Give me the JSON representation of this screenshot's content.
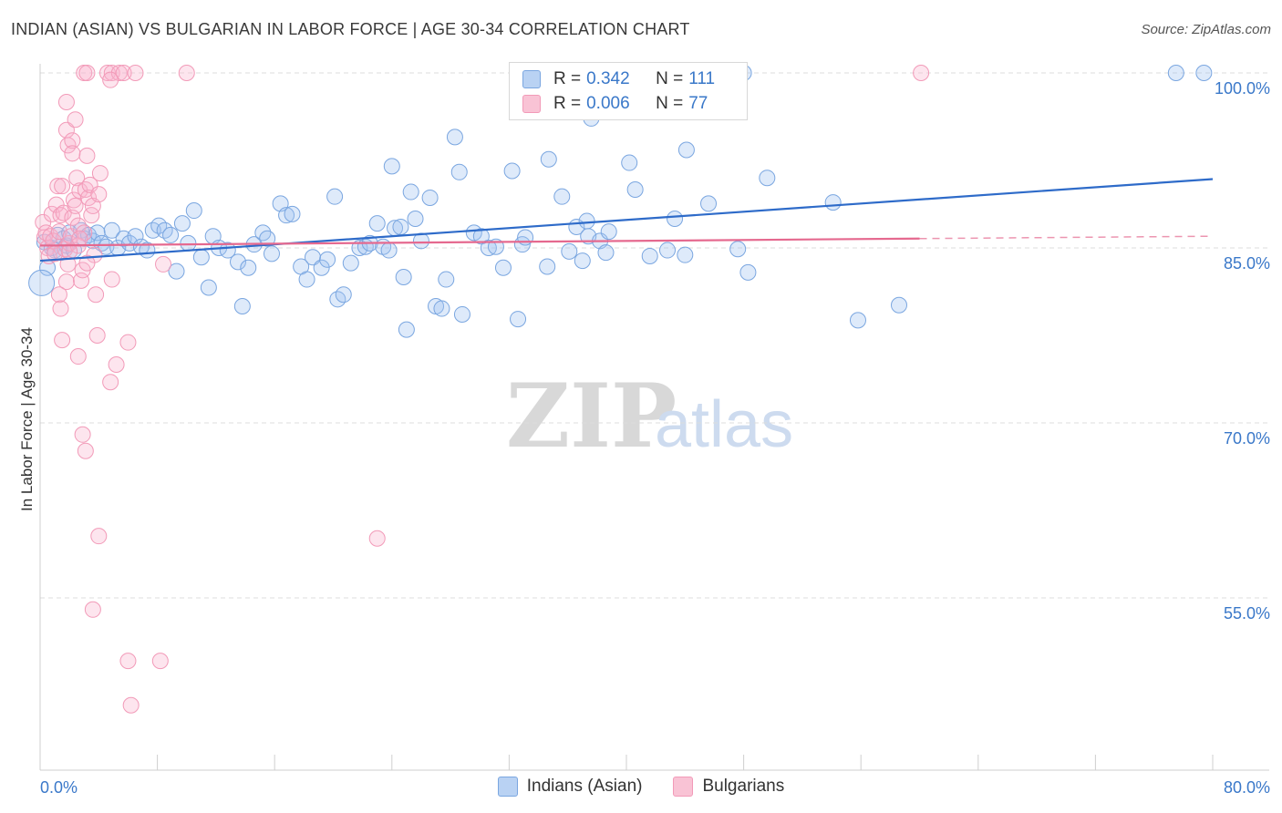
{
  "title": "INDIAN (ASIAN) VS BULGARIAN IN LABOR FORCE | AGE 30-34 CORRELATION CHART",
  "source": "Source: ZipAtlas.com",
  "watermark": {
    "zip": "ZIP",
    "atlas": "atlas"
  },
  "legend": {
    "r_label": "R =",
    "n_label": "N =",
    "series1": {
      "r": "0.342",
      "n": "111"
    },
    "series2": {
      "r": "0.006",
      "n": "77"
    }
  },
  "chart_data": {
    "type": "scatter",
    "ylabel": "In Labor Force | Age 30-34",
    "xlim": [
      0,
      80
    ],
    "ylim": [
      43,
      101
    ],
    "x_tick_labels": [
      "0.0%",
      "80.0%"
    ],
    "y_ticks": [
      {
        "value": 100,
        "label": "100.0%"
      },
      {
        "value": 85,
        "label": "85.0%"
      },
      {
        "value": 70,
        "label": "70.0%"
      },
      {
        "value": 55,
        "label": "55.0%"
      }
    ],
    "grid": "horizontal dashed",
    "legend_position": "bottom",
    "series": [
      {
        "name": "Indians (Asian)",
        "color": "#7aa6e0",
        "line_color": "#2e6bc9",
        "trend": {
          "x1": 0,
          "y1": 83.9,
          "x2": 80,
          "y2": 90.9
        },
        "points": [
          [
            0.3,
            85.5
          ],
          [
            0.5,
            83.3
          ],
          [
            0.8,
            85.0
          ],
          [
            1.0,
            84.8
          ],
          [
            1.2,
            86.1
          ],
          [
            1.4,
            84.6
          ],
          [
            1.6,
            85.8
          ],
          [
            1.8,
            85.2
          ],
          [
            2.0,
            86.3
          ],
          [
            2.3,
            84.8
          ],
          [
            2.8,
            86.5
          ],
          [
            3.0,
            85.8
          ],
          [
            3.3,
            86.1
          ],
          [
            3.6,
            85.6
          ],
          [
            3.9,
            86.3
          ],
          [
            4.2,
            85.4
          ],
          [
            4.5,
            85.1
          ],
          [
            4.9,
            86.5
          ],
          [
            5.3,
            85.0
          ],
          [
            5.7,
            85.8
          ],
          [
            6.1,
            85.4
          ],
          [
            6.5,
            86.0
          ],
          [
            6.9,
            85.1
          ],
          [
            7.3,
            84.8
          ],
          [
            7.7,
            86.5
          ],
          [
            8.1,
            86.9
          ],
          [
            8.5,
            86.5
          ],
          [
            8.9,
            86.1
          ],
          [
            9.3,
            83.0
          ],
          [
            9.7,
            87.1
          ],
          [
            10.1,
            85.4
          ],
          [
            10.5,
            88.2
          ],
          [
            11.0,
            84.2
          ],
          [
            11.5,
            81.6
          ],
          [
            11.8,
            86.0
          ],
          [
            12.2,
            85.0
          ],
          [
            12.8,
            84.8
          ],
          [
            13.5,
            83.8
          ],
          [
            13.8,
            80.0
          ],
          [
            14.2,
            83.3
          ],
          [
            14.6,
            85.3
          ],
          [
            15.2,
            86.3
          ],
          [
            15.5,
            85.8
          ],
          [
            15.8,
            84.5
          ],
          [
            16.4,
            88.8
          ],
          [
            16.8,
            87.8
          ],
          [
            17.2,
            87.9
          ],
          [
            17.8,
            83.4
          ],
          [
            18.2,
            82.3
          ],
          [
            18.6,
            84.2
          ],
          [
            19.2,
            83.3
          ],
          [
            19.6,
            84.0
          ],
          [
            20.1,
            89.4
          ],
          [
            20.3,
            80.6
          ],
          [
            20.7,
            81.0
          ],
          [
            21.2,
            83.7
          ],
          [
            21.8,
            85.0
          ],
          [
            22.2,
            85.1
          ],
          [
            22.5,
            85.4
          ],
          [
            23.0,
            87.1
          ],
          [
            23.4,
            85.1
          ],
          [
            23.8,
            84.8
          ],
          [
            24.2,
            86.7
          ],
          [
            24.6,
            86.8
          ],
          [
            24.0,
            92.0
          ],
          [
            24.8,
            82.5
          ],
          [
            25.3,
            89.8
          ],
          [
            25.6,
            87.5
          ],
          [
            26.0,
            85.6
          ],
          [
            26.6,
            89.3
          ],
          [
            27.0,
            80.0
          ],
          [
            27.4,
            79.8
          ],
          [
            27.7,
            82.3
          ],
          [
            28.3,
            94.5
          ],
          [
            28.6,
            91.5
          ],
          [
            28.8,
            79.3
          ],
          [
            29.6,
            86.3
          ],
          [
            30.1,
            86.0
          ],
          [
            30.6,
            85.0
          ],
          [
            31.1,
            85.1
          ],
          [
            31.6,
            83.3
          ],
          [
            32.2,
            91.6
          ],
          [
            32.6,
            78.9
          ],
          [
            32.9,
            85.3
          ],
          [
            33.1,
            85.9
          ],
          [
            34.6,
            83.4
          ],
          [
            34.7,
            92.6
          ],
          [
            35.6,
            89.4
          ],
          [
            36.1,
            84.7
          ],
          [
            36.6,
            86.8
          ],
          [
            37.0,
            83.9
          ],
          [
            37.6,
            96.1
          ],
          [
            37.3,
            87.3
          ],
          [
            37.4,
            86.0
          ],
          [
            38.2,
            85.6
          ],
          [
            38.6,
            84.6
          ],
          [
            38.8,
            86.4
          ],
          [
            40.2,
            92.3
          ],
          [
            40.6,
            90.0
          ],
          [
            41.6,
            84.3
          ],
          [
            42.8,
            84.8
          ],
          [
            43.3,
            87.5
          ],
          [
            44.0,
            84.4
          ],
          [
            44.1,
            93.4
          ],
          [
            45.6,
            88.8
          ],
          [
            47.6,
            84.9
          ],
          [
            48.3,
            82.9
          ],
          [
            49.6,
            91.0
          ],
          [
            54.1,
            88.9
          ],
          [
            55.8,
            78.8
          ],
          [
            58.6,
            80.1
          ],
          [
            77.5,
            100.0
          ],
          [
            79.4,
            100.0
          ],
          [
            48.0,
            100.0
          ],
          [
            25.0,
            78.0
          ]
        ]
      },
      {
        "name": "Bulgarians",
        "color": "#f29ab8",
        "line_color": "#e5698f",
        "trend": {
          "x1": 0,
          "y1": 85.2,
          "x2": 60,
          "y2": 85.8
        },
        "trend_dashed": {
          "x1": 60,
          "y1": 85.8,
          "x2": 80,
          "y2": 86.0
        },
        "points": [
          [
            0.2,
            87.2
          ],
          [
            0.3,
            85.9
          ],
          [
            0.4,
            86.3
          ],
          [
            0.5,
            85.0
          ],
          [
            0.6,
            84.3
          ],
          [
            0.7,
            86.0
          ],
          [
            0.8,
            87.9
          ],
          [
            0.9,
            85.6
          ],
          [
            1.0,
            84.5
          ],
          [
            1.1,
            88.7
          ],
          [
            1.2,
            90.3
          ],
          [
            1.3,
            86.4
          ],
          [
            1.4,
            87.8
          ],
          [
            1.5,
            90.3
          ],
          [
            1.6,
            88.0
          ],
          [
            1.7,
            84.9
          ],
          [
            1.8,
            82.1
          ],
          [
            1.9,
            83.6
          ],
          [
            2.0,
            85.4
          ],
          [
            2.1,
            86.0
          ],
          [
            2.2,
            87.6
          ],
          [
            2.3,
            89.1
          ],
          [
            2.4,
            88.6
          ],
          [
            2.5,
            91.0
          ],
          [
            2.6,
            86.9
          ],
          [
            2.7,
            89.9
          ],
          [
            2.8,
            82.2
          ],
          [
            2.9,
            83.1
          ],
          [
            3.0,
            86.3
          ],
          [
            3.1,
            90.0
          ],
          [
            3.2,
            92.9
          ],
          [
            3.3,
            89.3
          ],
          [
            3.4,
            90.4
          ],
          [
            3.5,
            87.8
          ],
          [
            3.6,
            88.6
          ],
          [
            3.7,
            84.4
          ],
          [
            3.8,
            81.0
          ],
          [
            3.9,
            77.5
          ],
          [
            4.0,
            89.6
          ],
          [
            4.1,
            91.4
          ],
          [
            1.8,
            95.1
          ],
          [
            1.8,
            97.5
          ],
          [
            1.9,
            93.8
          ],
          [
            2.2,
            94.2
          ],
          [
            2.2,
            93.1
          ],
          [
            2.4,
            96.0
          ],
          [
            2.6,
            85.2
          ],
          [
            4.8,
            73.5
          ],
          [
            5.2,
            75.0
          ],
          [
            6.0,
            76.9
          ],
          [
            3.0,
            100.0
          ],
          [
            3.2,
            100.0
          ],
          [
            4.6,
            100.0
          ],
          [
            4.9,
            100.0
          ],
          [
            5.4,
            100.0
          ],
          [
            5.7,
            100.0
          ],
          [
            6.5,
            100.0
          ],
          [
            10.0,
            100.0
          ],
          [
            4.8,
            99.4
          ],
          [
            60.1,
            100.0
          ],
          [
            1.3,
            81.0
          ],
          [
            1.4,
            79.8
          ],
          [
            1.5,
            77.1
          ],
          [
            2.6,
            75.7
          ],
          [
            2.9,
            69.0
          ],
          [
            3.1,
            67.6
          ],
          [
            4.0,
            60.3
          ],
          [
            3.6,
            54.0
          ],
          [
            6.0,
            49.6
          ],
          [
            8.2,
            49.6
          ],
          [
            6.2,
            45.8
          ],
          [
            23.0,
            60.1
          ],
          [
            8.4,
            83.6
          ],
          [
            4.9,
            82.3
          ],
          [
            3.2,
            83.7
          ],
          [
            2.7,
            85.8
          ],
          [
            2.0,
            84.7
          ]
        ]
      }
    ]
  }
}
